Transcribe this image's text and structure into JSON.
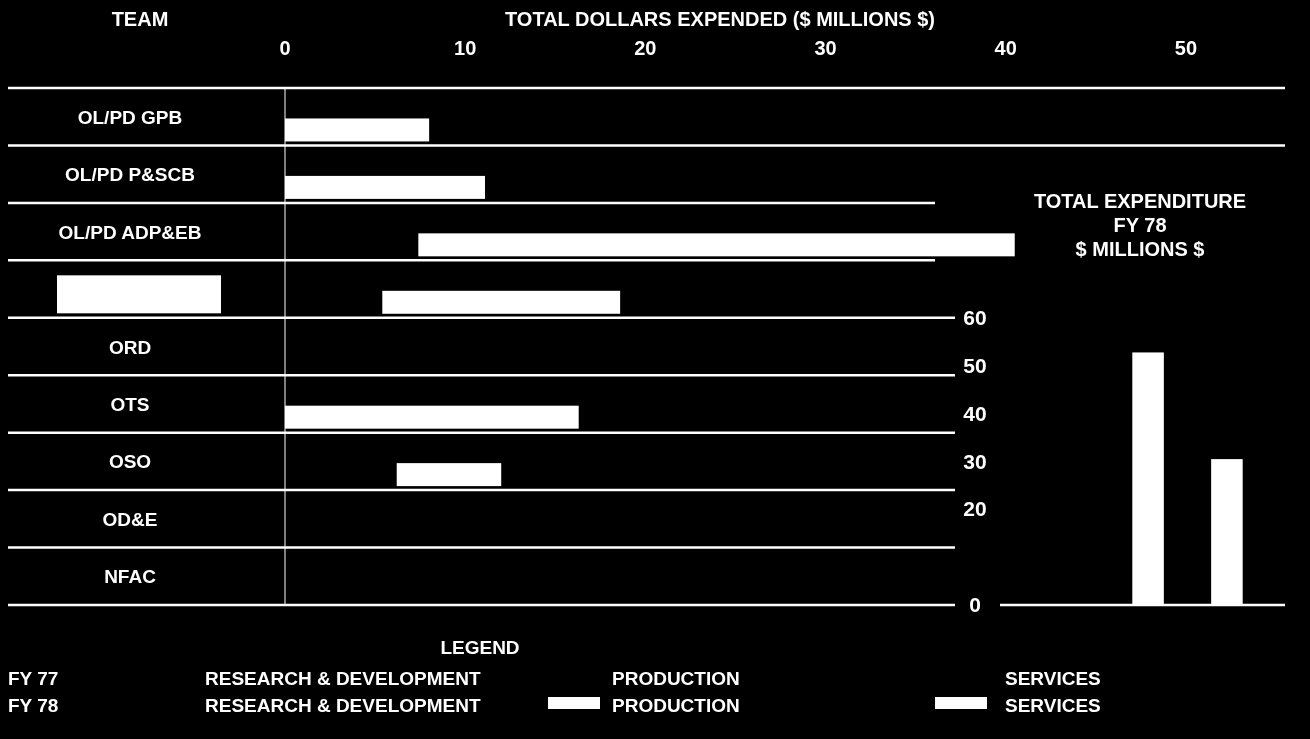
{
  "chart_data": [
    {
      "type": "bar",
      "orientation": "horizontal",
      "title": "TOTAL DOLLARS EXPENDED ($ MILLIONS $)",
      "ylabel": "TEAM",
      "categories": [
        "OL/PD GPB",
        "OL/PD P&SCB",
        "OL/PD ADP&EB",
        null,
        "ORD",
        "OTS",
        "OSO",
        "OD&E",
        "NFAC"
      ],
      "series": [
        {
          "color": "#ffffff",
          "values": [
            8.0,
            11.1,
            33.1,
            13.2,
            null,
            16.3,
            5.8,
            null,
            null
          ],
          "base": [
            0,
            0,
            7.4,
            5.4,
            null,
            0,
            6.2,
            null,
            null
          ]
        }
      ],
      "xlim": [
        0,
        55.5
      ],
      "xticks": [
        0,
        10,
        20,
        30,
        40,
        50
      ],
      "annotations": [
        "LEGEND",
        "FY 77",
        "FY 78",
        "RESEARCH & DEVELOPMENT",
        "PRODUCTION",
        "SERVICES",
        "RESEARCH & DEVELOPMENT",
        "PRODUCTION",
        "SERVICES"
      ]
    },
    {
      "type": "bar",
      "title": "TOTAL EXPENDITURE\nFY 78\n$ MILLIONS $",
      "categories": [
        null,
        null
      ],
      "series": [
        {
          "color": "#ffffff",
          "values": [
            52.8,
            30.5
          ]
        }
      ],
      "ylim": [
        0,
        60
      ],
      "yticks": [
        0,
        20,
        30,
        40,
        50,
        60
      ]
    }
  ]
}
